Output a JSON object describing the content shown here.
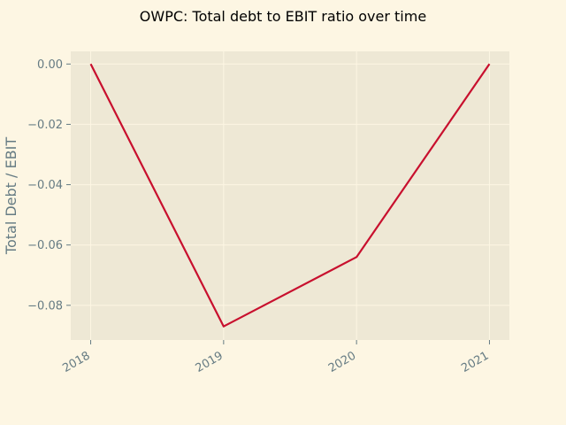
{
  "chart_data": {
    "type": "line",
    "title": "OWPC: Total debt to EBIT ratio over time",
    "xlabel": "",
    "ylabel": "Total Debt / EBIT",
    "x": [
      "2018",
      "2019",
      "2020",
      "2021"
    ],
    "series": [
      {
        "values": [
          0.0,
          -0.087,
          -0.064,
          0.0
        ]
      }
    ],
    "xlim": [
      2017.85,
      2021.15
    ],
    "ylim": [
      -0.0915,
      0.0042
    ],
    "yticks": [
      {
        "value": 0.0,
        "label": "0.00"
      },
      {
        "value": -0.02,
        "label": "−0.02"
      },
      {
        "value": -0.04,
        "label": "−0.04"
      },
      {
        "value": -0.06,
        "label": "−0.06"
      },
      {
        "value": -0.08,
        "label": "−0.08"
      }
    ],
    "grid": true,
    "colors": {
      "figure_bg": "#fdf6e3",
      "plot_bg": "#eee8d5",
      "grid": "#fdf6e3",
      "line": "#c8102e",
      "tick": "#657b83"
    }
  }
}
